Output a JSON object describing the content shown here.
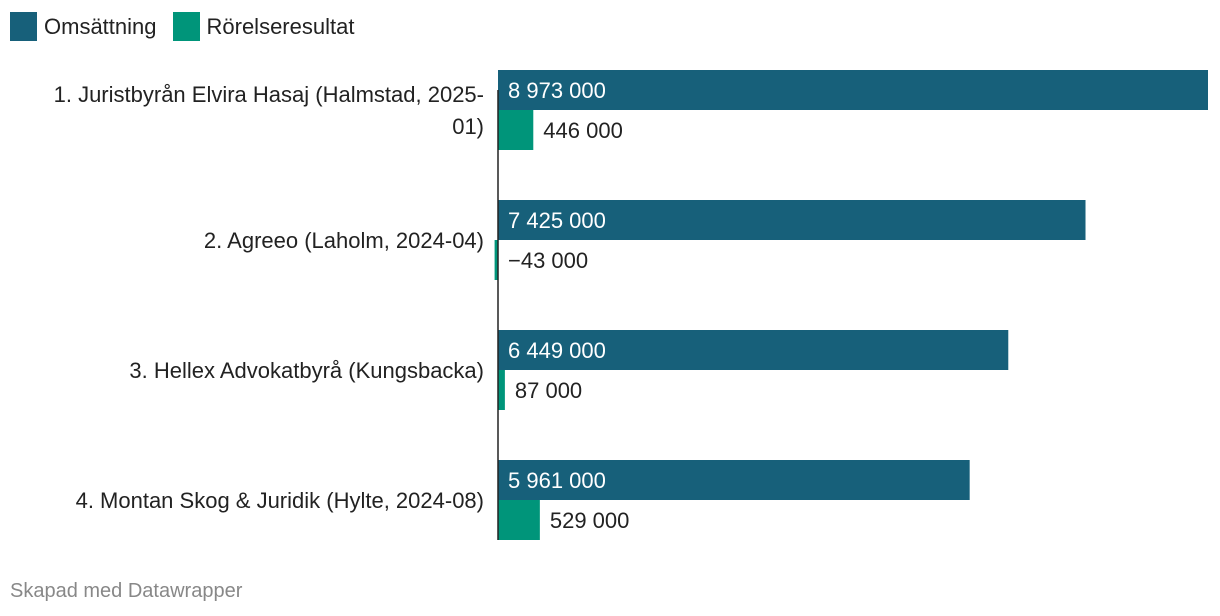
{
  "colors": {
    "omsattning": "#17607a",
    "rorelseresultat": "#00957a"
  },
  "legend": [
    {
      "label": "Omsättning",
      "color": "#17607a"
    },
    {
      "label": "Rörelseresultat",
      "color": "#00957a"
    }
  ],
  "chart_data": {
    "type": "bar",
    "orientation": "horizontal",
    "title": "",
    "xlabel": "",
    "ylabel": "",
    "xlim": [
      -60000,
      8973000
    ],
    "grid": false,
    "categories": [
      {
        "label_lines": [
          "1. Juristbyrån Elvira Hasaj (Halmstad, 2025-",
          "01)"
        ]
      },
      {
        "label_lines": [
          "2. Agreeo (Laholm, 2024-04)"
        ]
      },
      {
        "label_lines": [
          "3. Hellex Advokatbyrå (Kungsbacka)"
        ]
      },
      {
        "label_lines": [
          "4. Montan Skog & Juridik (Hylte, 2024-08)"
        ]
      }
    ],
    "series": [
      {
        "name": "Omsättning",
        "values": [
          8973000,
          7425000,
          6449000,
          5961000
        ],
        "labels": [
          "8 973 000",
          "7 425 000",
          "6 449 000",
          "5 961 000"
        ]
      },
      {
        "name": "Rörelseresultat",
        "values": [
          446000,
          -43000,
          87000,
          529000
        ],
        "labels": [
          "446 000",
          "−43 000",
          "87 000",
          "529 000"
        ]
      }
    ]
  },
  "footer": "Skapad med Datawrapper"
}
